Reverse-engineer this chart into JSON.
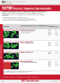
{
  "bg_color": "#ffffff",
  "left_bar_color": "#c8192e",
  "header_bar_color": "#c8192e",
  "title_color": "#c8192e",
  "green_cell_color": "#44bb44",
  "dark_cell_color": "#111122",
  "red_cell_color": "#cc3333",
  "footer_bar_color": "#c8192e",
  "gray_bar_color": "#e0e0e0",
  "logo_bar_color": "#f0f0f0",
  "table_header_bg": "#d8d8d8",
  "row_alt_bg": "#f4f4f4",
  "separator_color": "#cccccc",
  "text_dark": "#222222",
  "text_gray": "#555555",
  "catalog_color": "#333333"
}
